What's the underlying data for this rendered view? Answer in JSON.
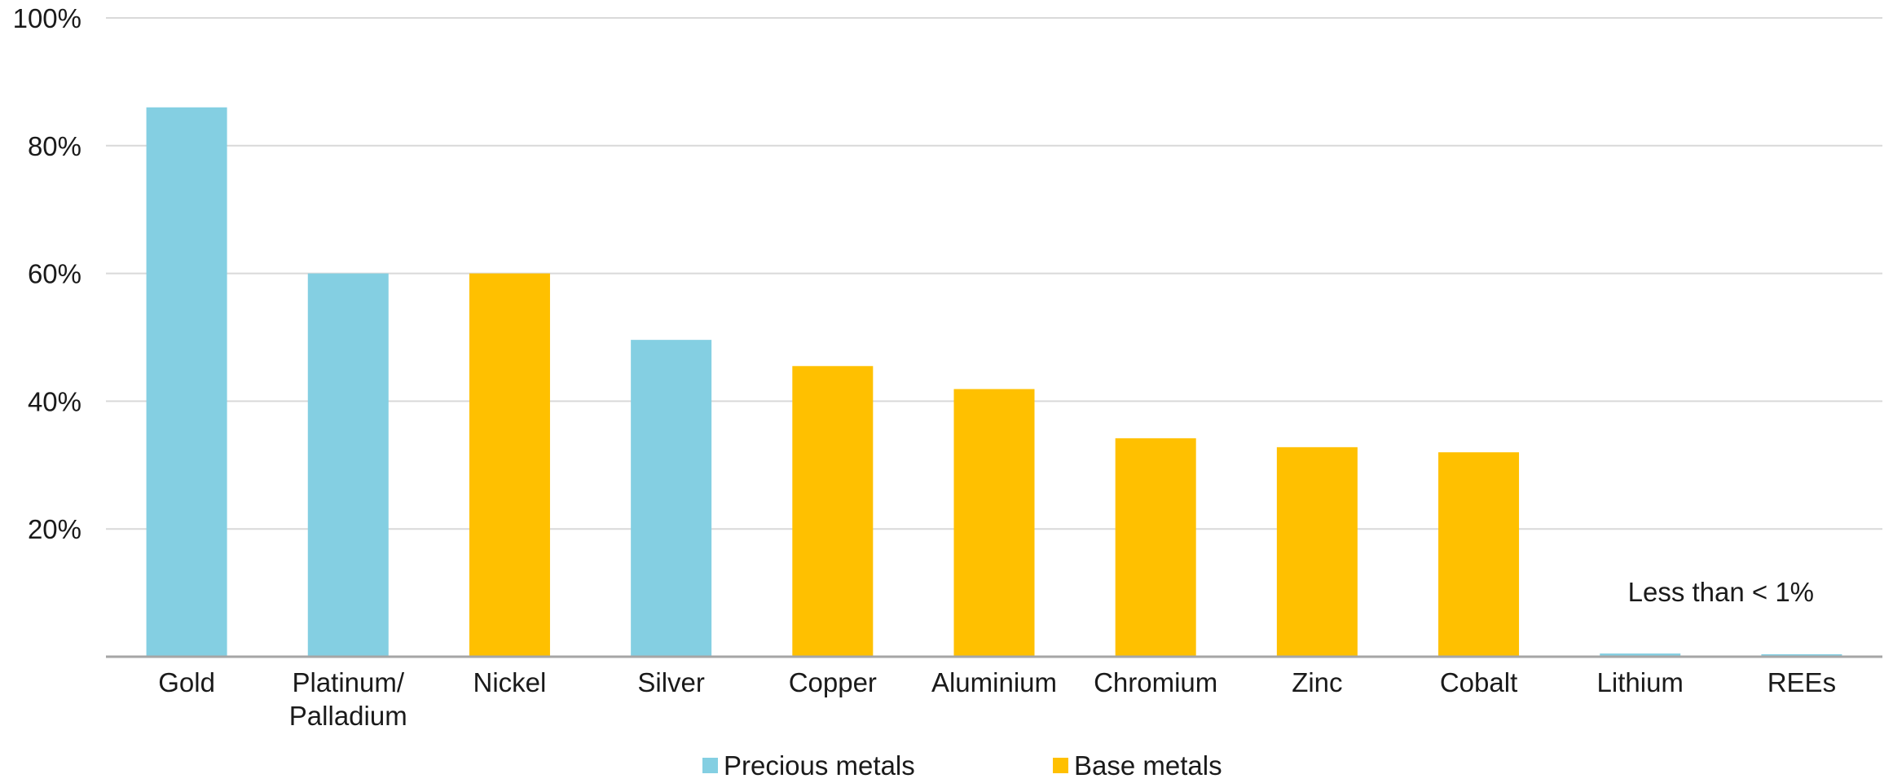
{
  "chart_data": {
    "type": "bar",
    "categories": [
      "Gold",
      "Platinum/\nPalladium",
      "Nickel",
      "Silver",
      "Copper",
      "Aluminium",
      "Chromium",
      "Zinc",
      "Cobalt",
      "Lithium",
      "REEs"
    ],
    "values": [
      86,
      60,
      60,
      49.6,
      45.5,
      41.9,
      34.2,
      32.8,
      32,
      0.5,
      0.2
    ],
    "groups": [
      "Precious metals",
      "Precious metals",
      "Base metals",
      "Precious metals",
      "Base metals",
      "Base metals",
      "Base metals",
      "Base metals",
      "Base metals",
      "Precious metals",
      "Precious metals"
    ],
    "ylim": [
      0,
      100
    ],
    "yticks": [
      "20%",
      "40%",
      "60%",
      "80%",
      "100%"
    ],
    "ytick_values": [
      20,
      40,
      60,
      80,
      100
    ],
    "grid": true,
    "legend": {
      "placement": "bottom-center",
      "entries": [
        {
          "name": "Precious metals",
          "color": "#84CFE2"
        },
        {
          "name": "Base metals",
          "color": "#FFC000"
        }
      ]
    },
    "annotation": "Less than < 1%",
    "title": "",
    "xlabel": "",
    "ylabel": ""
  },
  "colors": {
    "precious": "#84CFE2",
    "base": "#FFC000",
    "grid": "#D9D9D9",
    "axis": "#A6A6A6"
  }
}
